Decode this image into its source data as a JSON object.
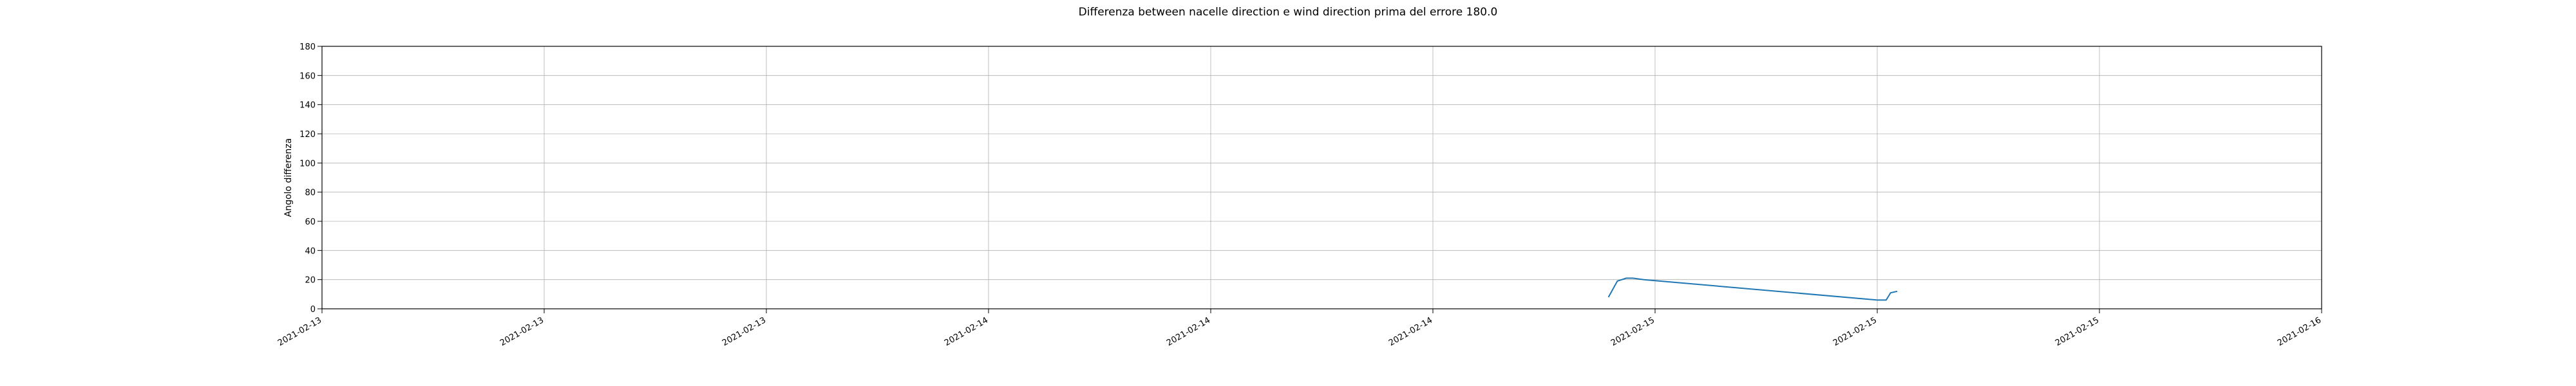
{
  "chart_data": {
    "type": "line",
    "title": "Differenza between nacelle direction e wind direction prima del errore 180.0",
    "xlabel": "",
    "ylabel": "Angolo differenza",
    "x_ticks": [
      "2021-02-13",
      "2021-02-13",
      "2021-02-13",
      "2021-02-14",
      "2021-02-14",
      "2021-02-14",
      "2021-02-15",
      "2021-02-15",
      "2021-02-15",
      "2021-02-16"
    ],
    "y_ticks": [
      0,
      20,
      40,
      60,
      80,
      100,
      120,
      140,
      160,
      180
    ],
    "ylim": [
      0,
      180
    ],
    "grid": true,
    "series_color": "#1f77b4",
    "series": [
      {
        "x": [
          5.79,
          5.83,
          5.87,
          5.9,
          5.95,
          7.0,
          7.04,
          7.06,
          7.09
        ],
        "y": [
          8,
          19,
          21,
          21,
          20,
          6,
          6,
          11,
          12
        ]
      }
    ]
  }
}
